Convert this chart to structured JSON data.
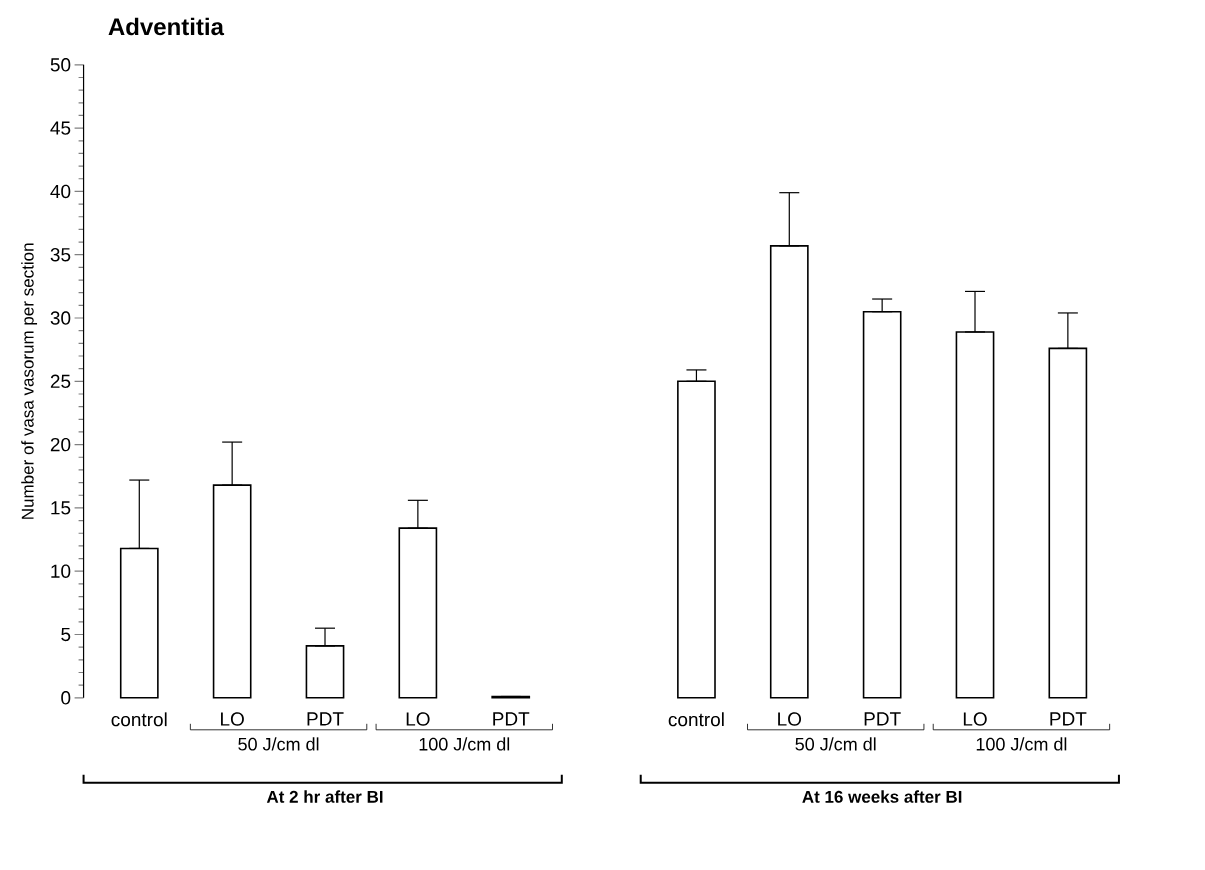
{
  "chart_data": {
    "type": "bar",
    "title": "Adventitia",
    "ylabel": "Number of vasa vasorum per section",
    "categories": [
      "control",
      "LO",
      "PDT",
      "LO",
      "PDT",
      null,
      "control",
      "LO",
      "PDT",
      "LO",
      "PDT"
    ],
    "values": [
      11.8,
      16.8,
      4.1,
      13.4,
      0.1,
      null,
      25.0,
      35.7,
      30.5,
      28.9,
      27.6
    ],
    "errors": [
      [
        11.8,
        17.2
      ],
      [
        16.8,
        20.2
      ],
      [
        4.1,
        5.5
      ],
      [
        13.4,
        15.6
      ],
      [
        0.1,
        0.1
      ],
      null,
      [
        25.0,
        25.9
      ],
      [
        35.7,
        39.9
      ],
      [
        30.5,
        31.5
      ],
      [
        28.9,
        32.1
      ],
      [
        27.6,
        30.4
      ]
    ],
    "color": "#000000",
    "ylim": [
      0,
      50
    ],
    "yticks": [
      0,
      5,
      10,
      15,
      20,
      25,
      30,
      35,
      40,
      45,
      50
    ],
    "annotations": [
      "50 J/cm dl",
      "100 J/cm dl",
      "50 J/cm dl",
      "100 J/cm dl",
      "At 2 hr after BI",
      "At 16 weeks after BI"
    ]
  }
}
